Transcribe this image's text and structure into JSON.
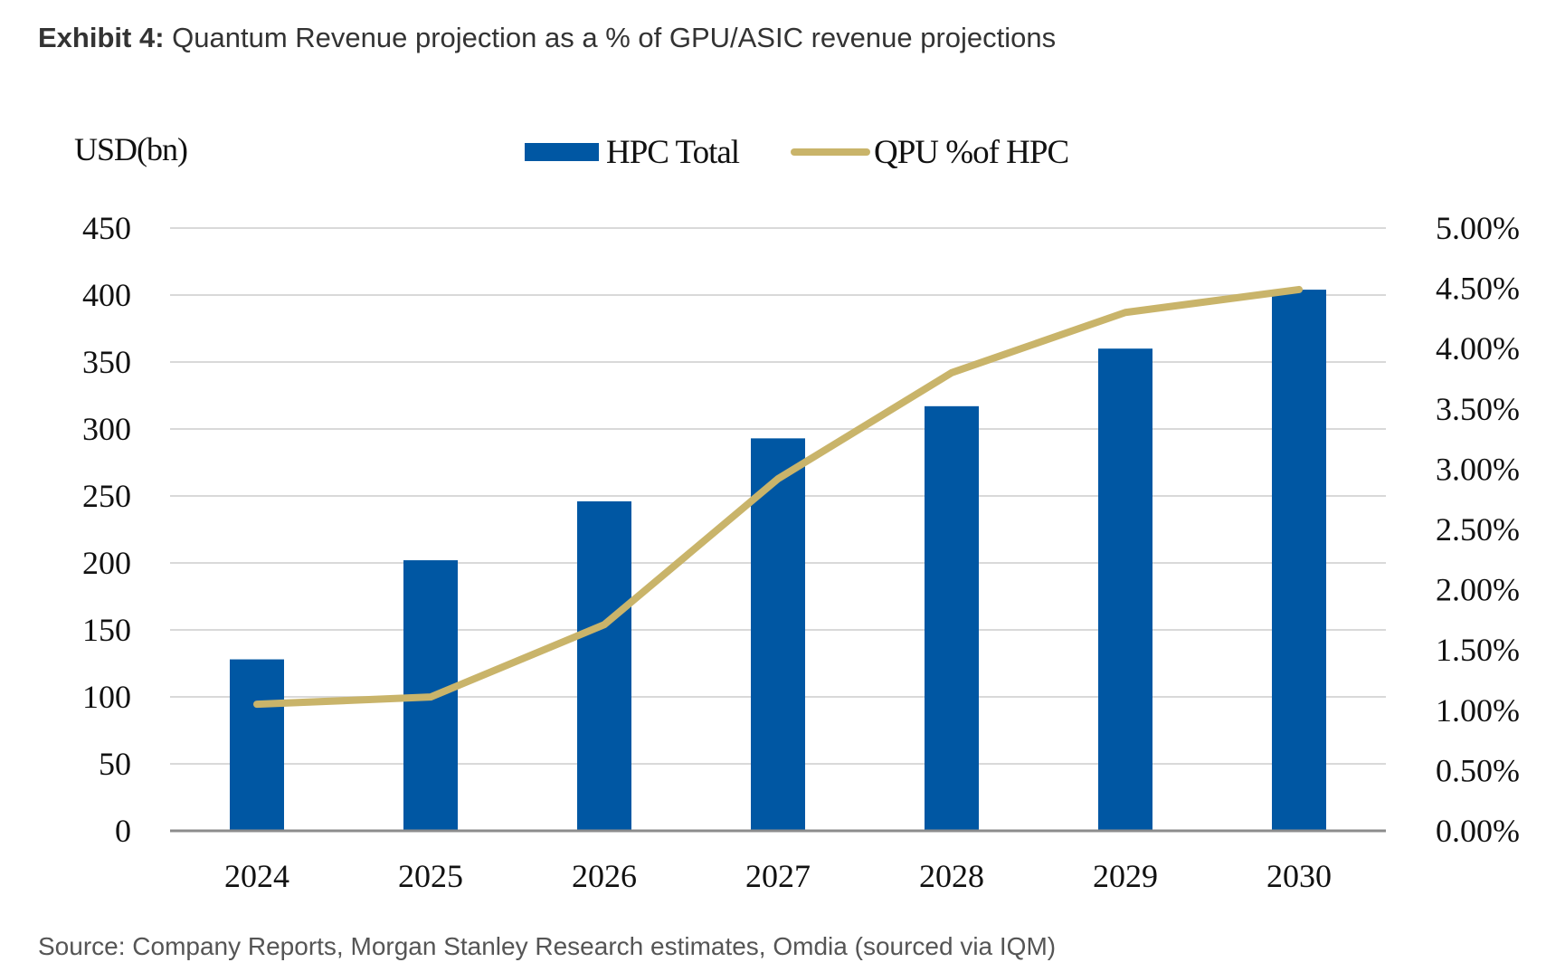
{
  "header": {
    "exhibit_label": "Exhibit 4:",
    "title": "Quantum Revenue projection as a % of GPU/ASIC revenue projections"
  },
  "footer": {
    "source": "Source: Company Reports, Morgan Stanley Research estimates, Omdia (sourced via IQM)"
  },
  "chart_data": {
    "type": "bar",
    "categories": [
      "2024",
      "2025",
      "2026",
      "2027",
      "2028",
      "2029",
      "2030"
    ],
    "series": [
      {
        "name": "HPC Total",
        "type": "bar",
        "axis": "left",
        "color": "#0057A3",
        "values": [
          128,
          202,
          246,
          293,
          317,
          360,
          404
        ]
      },
      {
        "name": "QPU %of HPC",
        "type": "line",
        "axis": "right",
        "color": "#C9B46A",
        "values": [
          1.05,
          1.11,
          1.71,
          2.92,
          3.8,
          4.3,
          4.49
        ]
      }
    ],
    "left_axis": {
      "label": "USD(bn)",
      "ylim": [
        0,
        450
      ],
      "ticks": [
        0,
        50,
        100,
        150,
        200,
        250,
        300,
        350,
        400,
        450
      ],
      "tick_labels": [
        "0",
        "50",
        "100",
        "150",
        "200",
        "250",
        "300",
        "350",
        "400",
        "450"
      ]
    },
    "right_axis": {
      "ylim": [
        0,
        5
      ],
      "ticks": [
        0,
        0.5,
        1,
        1.5,
        2,
        2.5,
        3,
        3.5,
        4,
        4.5,
        5
      ],
      "tick_labels": [
        "0.00%",
        "0.50%",
        "1.00%",
        "1.50%",
        "2.00%",
        "2.50%",
        "3.00%",
        "3.50%",
        "4.00%",
        "4.50%",
        "5.00%"
      ]
    },
    "grid": true,
    "legend_position": "top-center"
  }
}
